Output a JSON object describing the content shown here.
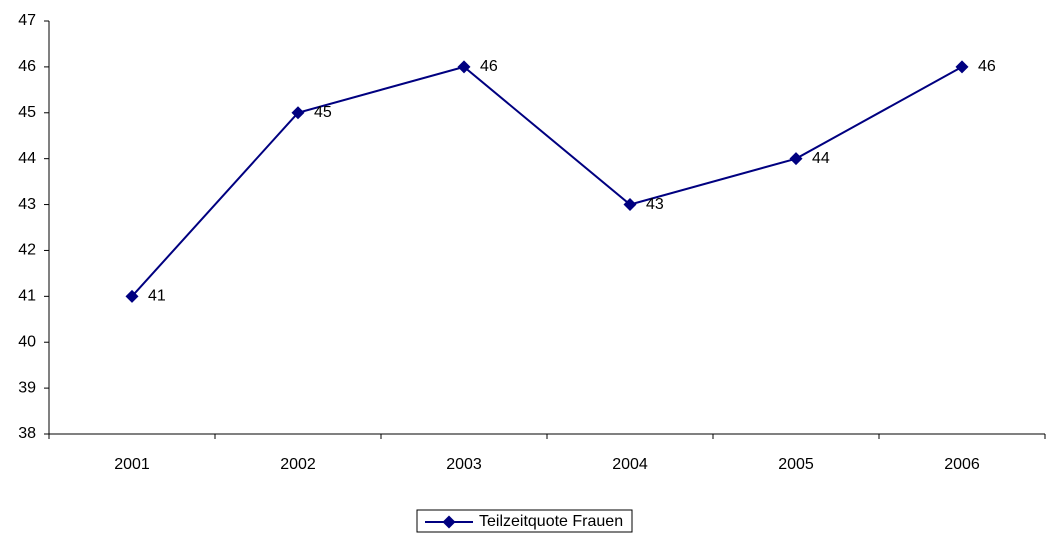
{
  "chart_data": {
    "type": "line",
    "categories": [
      "2001",
      "2002",
      "2003",
      "2004",
      "2005",
      "2006"
    ],
    "series": [
      {
        "name": "Teilzeitquote Frauen",
        "color": "#000080",
        "values": [
          41,
          45,
          46,
          43,
          44,
          46
        ]
      }
    ],
    "ylim": [
      38,
      47
    ],
    "yticks": [
      38,
      39,
      40,
      41,
      42,
      43,
      44,
      45,
      46,
      47
    ],
    "grid": false,
    "legend": "bottom",
    "data_labels": true
  }
}
